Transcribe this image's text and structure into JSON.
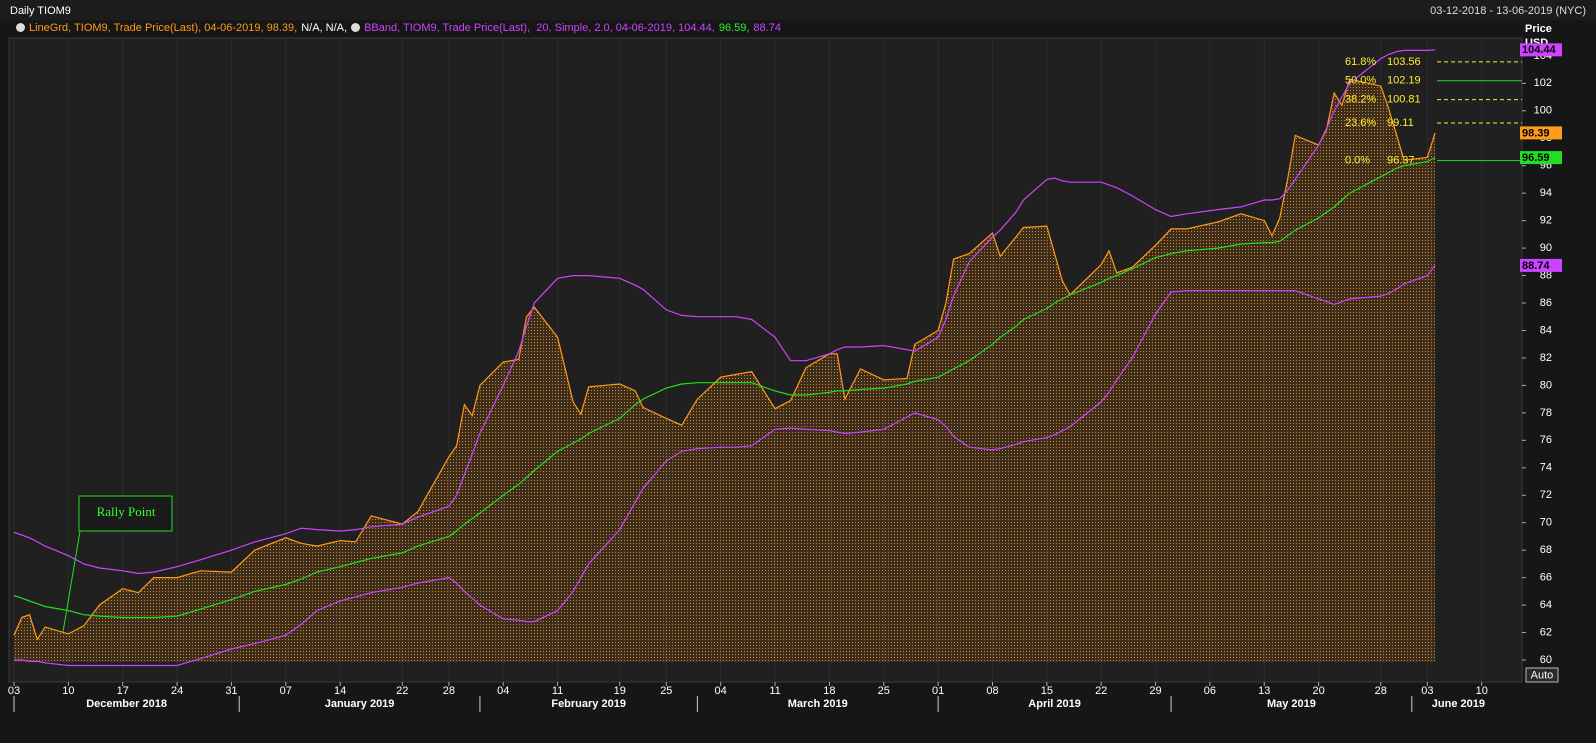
{
  "chart_data": {
    "type": "line",
    "title": "Daily TIOM9",
    "date_range": "03-12-2018 - 13-06-2019 (NYC)",
    "legend": [
      {
        "parts": [
          {
            "text": "LineGrd, TIOM9, Trade Price(Last), 04-06-2019, 98.39,",
            "color": "#ff9a1a"
          },
          {
            "text": "N/A, N/A,",
            "color": "#ffffff"
          }
        ]
      },
      {
        "parts": [
          {
            "text": "BBand, TIOM9, Trade Price(Last),  20, Simple, 2.0, 04-06-2019, 104.44,",
            "color": "#cc44ff"
          },
          {
            "text": "96.59,",
            "color": "#33ee33"
          },
          {
            "text": "88.74",
            "color": "#cc44ff"
          }
        ]
      }
    ],
    "y_label": "Price",
    "y_unit": "USD",
    "xlim": [
      "2018-12-03",
      "2019-06-13"
    ],
    "ylim": [
      58.4,
      105.3
    ],
    "yticks": [
      60,
      62,
      64,
      66,
      68,
      70,
      72,
      74,
      76,
      78,
      80,
      82,
      84,
      86,
      88,
      90,
      92,
      94,
      96,
      98,
      100,
      102,
      104
    ],
    "grid": "x",
    "xticks": [
      {
        "value": "2018-12-03",
        "label": "03"
      },
      {
        "value": "2018-12-10",
        "label": "10"
      },
      {
        "value": "2018-12-17",
        "label": "17"
      },
      {
        "value": "2018-12-24",
        "label": "24"
      },
      {
        "value": "2018-12-31",
        "label": "31"
      },
      {
        "value": "2019-01-07",
        "label": "07"
      },
      {
        "value": "2019-01-14",
        "label": "14"
      },
      {
        "value": "2019-01-22",
        "label": "22"
      },
      {
        "value": "2019-01-28",
        "label": "28"
      },
      {
        "value": "2019-02-04",
        "label": "04"
      },
      {
        "value": "2019-02-11",
        "label": "11"
      },
      {
        "value": "2019-02-19",
        "label": "19"
      },
      {
        "value": "2019-02-25",
        "label": "25"
      },
      {
        "value": "2019-03-04",
        "label": "04"
      },
      {
        "value": "2019-03-11",
        "label": "11"
      },
      {
        "value": "2019-03-18",
        "label": "18"
      },
      {
        "value": "2019-03-25",
        "label": "25"
      },
      {
        "value": "2019-04-01",
        "label": "01"
      },
      {
        "value": "2019-04-08",
        "label": "08"
      },
      {
        "value": "2019-04-15",
        "label": "15"
      },
      {
        "value": "2019-04-22",
        "label": "22"
      },
      {
        "value": "2019-04-29",
        "label": "29"
      },
      {
        "value": "2019-05-06",
        "label": "06"
      },
      {
        "value": "2019-05-13",
        "label": "13"
      },
      {
        "value": "2019-05-20",
        "label": "20"
      },
      {
        "value": "2019-05-28",
        "label": "28"
      },
      {
        "value": "2019-06-03",
        "label": "03"
      },
      {
        "value": "2019-06-10",
        "label": "10"
      }
    ],
    "months": [
      {
        "value": "2018-12",
        "label": "December 2018"
      },
      {
        "value": "2019-01",
        "label": "January 2019"
      },
      {
        "value": "2019-02",
        "label": "February 2019"
      },
      {
        "value": "2019-03",
        "label": "March 2019"
      },
      {
        "value": "2019-04",
        "label": "April 2019"
      },
      {
        "value": "2019-05",
        "label": "May 2019"
      },
      {
        "value": "2019-06",
        "label": "June 2019"
      }
    ],
    "x": [
      "2018-12-03",
      "2018-12-04",
      "2018-12-05",
      "2018-12-06",
      "2018-12-07",
      "2018-12-10",
      "2018-12-12",
      "2018-12-14",
      "2018-12-17",
      "2018-12-19",
      "2018-12-21",
      "2018-12-24",
      "2018-12-27",
      "2018-12-31",
      "2019-01-03",
      "2019-01-07",
      "2019-01-09",
      "2019-01-11",
      "2019-01-14",
      "2019-01-16",
      "2019-01-18",
      "2019-01-22",
      "2019-01-24",
      "2019-01-28",
      "2019-01-29",
      "2019-01-30",
      "2019-01-31",
      "2019-02-01",
      "2019-02-04",
      "2019-02-06",
      "2019-02-07",
      "2019-02-08",
      "2019-02-11",
      "2019-02-13",
      "2019-02-14",
      "2019-02-15",
      "2019-02-19",
      "2019-02-21",
      "2019-02-22",
      "2019-02-25",
      "2019-02-27",
      "2019-03-01",
      "2019-03-04",
      "2019-03-06",
      "2019-03-08",
      "2019-03-11",
      "2019-03-13",
      "2019-03-15",
      "2019-03-18",
      "2019-03-19",
      "2019-03-20",
      "2019-03-22",
      "2019-03-25",
      "2019-03-28",
      "2019-03-29",
      "2019-04-01",
      "2019-04-02",
      "2019-04-03",
      "2019-04-05",
      "2019-04-08",
      "2019-04-09",
      "2019-04-11",
      "2019-04-12",
      "2019-04-15",
      "2019-04-16",
      "2019-04-17",
      "2019-04-18",
      "2019-04-22",
      "2019-04-23",
      "2019-04-24",
      "2019-04-26",
      "2019-04-29",
      "2019-05-01",
      "2019-05-03",
      "2019-05-07",
      "2019-05-10",
      "2019-05-13",
      "2019-05-14",
      "2019-05-15",
      "2019-05-16",
      "2019-05-17",
      "2019-05-20",
      "2019-05-21",
      "2019-05-22",
      "2019-05-23",
      "2019-05-24",
      "2019-05-28",
      "2019-05-29",
      "2019-05-30",
      "2019-05-31",
      "2019-06-03",
      "2019-06-04"
    ],
    "series": [
      {
        "name": "LineGrd",
        "color": "#ff9a1a",
        "fill": true,
        "values": [
          61.8,
          63.1,
          63.3,
          61.5,
          62.4,
          61.9,
          62.5,
          64.0,
          65.2,
          64.9,
          66.0,
          66.0,
          66.5,
          66.4,
          68.0,
          68.9,
          68.5,
          68.3,
          68.7,
          68.6,
          70.5,
          69.9,
          70.8,
          74.8,
          75.6,
          78.6,
          77.8,
          80.0,
          81.7,
          81.9,
          85.0,
          85.7,
          83.5,
          78.8,
          77.9,
          79.9,
          80.1,
          79.6,
          78.4,
          77.6,
          77.1,
          79.0,
          80.6,
          80.8,
          81.0,
          78.3,
          78.9,
          81.3,
          82.3,
          82.3,
          79.0,
          81.2,
          80.4,
          80.5,
          83.0,
          84.0,
          86.0,
          89.2,
          89.6,
          91.1,
          89.4,
          90.8,
          91.5,
          91.6,
          89.6,
          87.6,
          86.6,
          88.8,
          89.8,
          88.2,
          88.6,
          90.2,
          91.4,
          91.4,
          91.9,
          92.5,
          92.0,
          90.9,
          92.2,
          95.0,
          98.2,
          97.5,
          98.6,
          101.3,
          100.4,
          102.3,
          101.8,
          100.2,
          98.3,
          96.4,
          96.6,
          98.39
        ]
      },
      {
        "name": "BBand",
        "color": "#cc44ff",
        "values": [
          69.3,
          69.1,
          68.9,
          68.6,
          68.3,
          67.6,
          67.0,
          66.7,
          66.5,
          66.3,
          66.4,
          66.8,
          67.3,
          68.0,
          68.6,
          69.2,
          69.6,
          69.5,
          69.4,
          69.5,
          69.7,
          69.9,
          70.4,
          71.2,
          72.0,
          73.5,
          75.0,
          76.5,
          80.0,
          82.5,
          84.3,
          86.0,
          87.8,
          88.0,
          88.0,
          88.0,
          87.8,
          87.3,
          87.0,
          85.5,
          85.1,
          85.0,
          85.0,
          85.0,
          84.8,
          83.5,
          81.8,
          81.8,
          82.3,
          82.6,
          82.8,
          82.8,
          82.9,
          82.6,
          82.5,
          83.5,
          84.8,
          86.5,
          89.0,
          90.8,
          91.3,
          92.6,
          93.5,
          95.0,
          95.1,
          94.9,
          94.8,
          94.8,
          94.6,
          94.4,
          93.8,
          92.8,
          92.3,
          92.5,
          92.8,
          93.0,
          93.5,
          93.5,
          93.6,
          94.2,
          95.0,
          97.5,
          98.7,
          100.0,
          101.0,
          102.0,
          103.8,
          104.1,
          104.3,
          104.4,
          104.4,
          104.44
        ]
      },
      {
        "name": "BBand",
        "color": "#22dd22",
        "values": [
          64.7,
          64.5,
          64.3,
          64.1,
          63.9,
          63.6,
          63.3,
          63.2,
          63.1,
          63.1,
          63.1,
          63.2,
          63.7,
          64.4,
          65.0,
          65.5,
          65.9,
          66.4,
          66.8,
          67.1,
          67.4,
          67.8,
          68.3,
          69.0,
          69.4,
          69.9,
          70.3,
          70.7,
          72.0,
          72.8,
          73.3,
          73.8,
          75.2,
          75.8,
          76.1,
          76.5,
          77.6,
          78.6,
          79.0,
          79.8,
          80.1,
          80.2,
          80.2,
          80.2,
          80.2,
          79.6,
          79.3,
          79.3,
          79.5,
          79.6,
          79.6,
          79.7,
          79.8,
          80.1,
          80.3,
          80.6,
          80.9,
          81.2,
          81.8,
          83.0,
          83.5,
          84.3,
          84.8,
          85.6,
          86.0,
          86.3,
          86.6,
          87.5,
          87.8,
          88.0,
          88.5,
          89.3,
          89.6,
          89.8,
          90.0,
          90.3,
          90.4,
          90.4,
          90.5,
          90.9,
          91.3,
          92.2,
          92.6,
          93.0,
          93.5,
          94.0,
          95.2,
          95.5,
          95.8,
          96.0,
          96.3,
          96.59
        ]
      },
      {
        "name": "BBand",
        "color": "#cc44ff",
        "values": [
          60.0,
          60.0,
          59.9,
          59.9,
          59.8,
          59.6,
          59.6,
          59.6,
          59.6,
          59.6,
          59.6,
          59.6,
          60.1,
          60.8,
          61.2,
          61.8,
          62.6,
          63.6,
          64.3,
          64.6,
          64.9,
          65.3,
          65.6,
          66.0,
          65.6,
          65.0,
          64.5,
          64.0,
          63.0,
          62.9,
          62.8,
          62.8,
          63.6,
          65.0,
          66.0,
          67.0,
          69.5,
          71.5,
          72.5,
          74.5,
          75.2,
          75.4,
          75.5,
          75.5,
          75.6,
          76.8,
          76.9,
          76.8,
          76.7,
          76.6,
          76.5,
          76.6,
          76.8,
          77.7,
          78.0,
          77.5,
          77.0,
          76.3,
          75.5,
          75.3,
          75.4,
          75.7,
          75.9,
          76.2,
          76.4,
          76.7,
          77.0,
          78.8,
          79.5,
          80.4,
          82.0,
          85.2,
          86.8,
          86.9,
          86.9,
          86.9,
          86.9,
          86.9,
          86.9,
          86.9,
          86.9,
          86.3,
          86.1,
          85.9,
          86.1,
          86.3,
          86.5,
          86.7,
          87.0,
          87.4,
          88.0,
          88.74
        ]
      }
    ],
    "fib_levels": [
      {
        "label": "61.8%",
        "value": 103.56,
        "color": "#ffee33",
        "dashed": true
      },
      {
        "label": "50.0%",
        "value": 102.19,
        "color": "#22dd22",
        "dashed": false
      },
      {
        "label": "38.2%",
        "value": 100.81,
        "color": "#ffee33",
        "dashed": true
      },
      {
        "label": "23.6%",
        "value": 99.11,
        "color": "#ffee33",
        "dashed": true
      },
      {
        "label": "0.0%",
        "value": 96.37,
        "color": "#22dd22",
        "dashed": false
      }
    ],
    "annotations": [
      {
        "text": "Rally Point"
      }
    ],
    "buttons": [
      "Auto"
    ]
  }
}
